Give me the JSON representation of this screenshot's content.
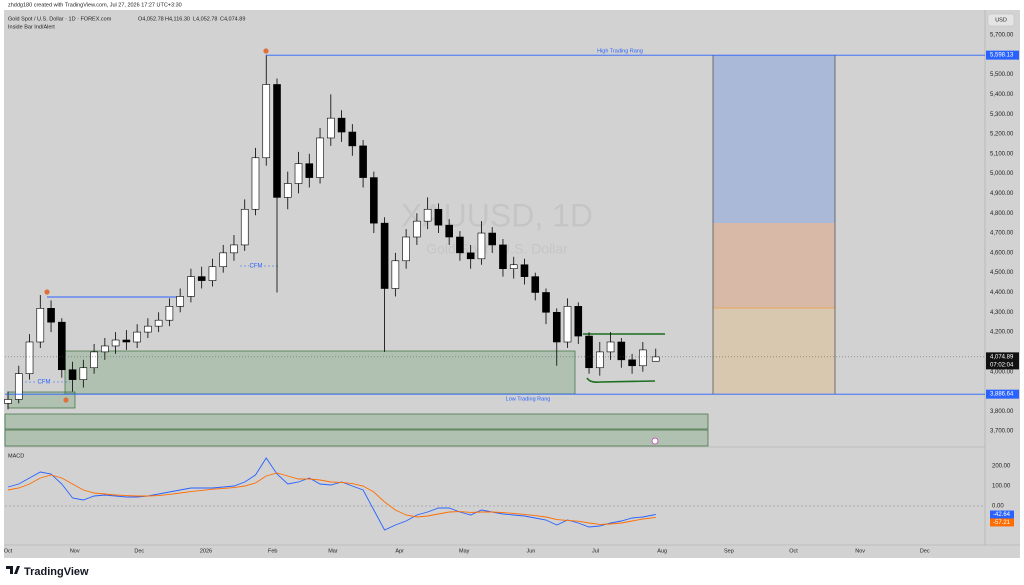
{
  "header": {
    "credit": "zhddg180 created with TradingView.com, Jul 27, 2026 17:27 UTC+3:30",
    "symbol": "Gold Spot / U.S. Dollar · 1D · FOREX.com",
    "ohlc": [
      "O4,052.78",
      "H4,116.30",
      "L4,052.78",
      "C4,074.89"
    ],
    "indicator": "Inside Bar Ind/Alert",
    "currency": "USD",
    "watermark": "XAUUSD, 1D",
    "watermark_sub": "Gold Spot / U.S. Dollar"
  },
  "chart_data": [
    {
      "type": "candlestick",
      "x": [
        0,
        5,
        10,
        15,
        20,
        25,
        30,
        35,
        40,
        45,
        50,
        55,
        60,
        65,
        70,
        75,
        80,
        85,
        90,
        95,
        100,
        105,
        110,
        115,
        120,
        125,
        130,
        135,
        140,
        145,
        150,
        155,
        160,
        165,
        170,
        175,
        180,
        185,
        190,
        195,
        200,
        205,
        210,
        215,
        220,
        225,
        230,
        235,
        240,
        245,
        250,
        255,
        260,
        265,
        270,
        275,
        280,
        285,
        290,
        295,
        301
      ],
      "open": [
        3840,
        3860,
        3990,
        4150,
        4320,
        4250,
        4010,
        3960,
        4020,
        4100,
        4130,
        4160,
        4150,
        4200,
        4230,
        4260,
        4330,
        4380,
        4480,
        4460,
        4530,
        4600,
        4640,
        4820,
        5080,
        5450,
        4880,
        4950,
        5050,
        4980,
        5180,
        5280,
        5210,
        5140,
        4980,
        4750,
        4420,
        4560,
        4680,
        4760,
        4820,
        4740,
        4680,
        4600,
        4570,
        4700,
        4640,
        4520,
        4540,
        4480,
        4400,
        4300,
        4150,
        4330,
        4180,
        4020,
        4100,
        4150,
        4060,
        4030,
        4052.78
      ],
      "high": [
        3900,
        4030,
        4190,
        4387,
        4360,
        4270,
        4050,
        4060,
        4140,
        4170,
        4200,
        4210,
        4240,
        4270,
        4300,
        4370,
        4420,
        4520,
        4530,
        4570,
        4640,
        4690,
        4870,
        5130,
        5598.13,
        5480,
        5010,
        5110,
        5100,
        5230,
        5400,
        5320,
        5250,
        5170,
        5010,
        4780,
        4600,
        4720,
        4800,
        4880,
        4850,
        4770,
        4710,
        4640,
        4760,
        4730,
        4670,
        4580,
        4570,
        4500,
        4420,
        4320,
        4370,
        4350,
        4200,
        4150,
        4200,
        4170,
        4090,
        4150,
        4116.3
      ],
      "low": [
        3810,
        3840,
        3960,
        4120,
        4200,
        3970,
        3900,
        3920,
        3990,
        4060,
        4090,
        4110,
        4120,
        4170,
        4200,
        4230,
        4300,
        4350,
        4420,
        4430,
        4500,
        4560,
        4610,
        4790,
        5040,
        4400,
        4820,
        4900,
        4930,
        4950,
        5140,
        5160,
        5090,
        4930,
        4700,
        4100,
        4380,
        4520,
        4640,
        4720,
        4700,
        4640,
        4560,
        4520,
        4540,
        4600,
        4480,
        4470,
        4440,
        4360,
        4240,
        4030,
        4120,
        4140,
        3990,
        3980,
        4060,
        4020,
        3990,
        4000,
        4052.78
      ],
      "close": [
        3860,
        3990,
        4150,
        4320,
        4250,
        4010,
        3960,
        4020,
        4100,
        4130,
        4160,
        4150,
        4200,
        4230,
        4260,
        4330,
        4380,
        4480,
        4460,
        4530,
        4600,
        4640,
        4820,
        5080,
        5450,
        4880,
        4950,
        5050,
        4980,
        5180,
        5280,
        5210,
        5140,
        4980,
        4750,
        4420,
        4560,
        4680,
        4760,
        4820,
        4740,
        4680,
        4600,
        4570,
        4700,
        4640,
        4520,
        4540,
        4480,
        4400,
        4300,
        4150,
        4330,
        4180,
        4020,
        4100,
        4150,
        4060,
        4030,
        4110,
        4074.89
      ],
      "up_color": "#ffffff",
      "down_color": "#000000",
      "xlim": [
        -1.4,
        454
      ],
      "xticks": [
        {
          "value": 0,
          "label": "Oct"
        },
        {
          "value": 31,
          "label": "Nov"
        },
        {
          "value": 61,
          "label": "Dec"
        },
        {
          "value": 92,
          "label": "2026"
        },
        {
          "value": 123,
          "label": "Feb"
        },
        {
          "value": 151,
          "label": "Mar"
        },
        {
          "value": 182,
          "label": "Apr"
        },
        {
          "value": 212,
          "label": "May"
        },
        {
          "value": 243,
          "label": "Jun"
        },
        {
          "value": 273,
          "label": "Jul"
        },
        {
          "value": 304,
          "label": "Aug"
        },
        {
          "value": 335,
          "label": "Sep"
        },
        {
          "value": 365,
          "label": "Oct"
        },
        {
          "value": 396,
          "label": "Nov"
        },
        {
          "value": 426,
          "label": "Dec"
        }
      ],
      "ylim": [
        3630,
        5826
      ],
      "yticks": [
        {
          "value": 3700,
          "label": "3,700.00"
        },
        {
          "value": 3800,
          "label": "3,800.00"
        },
        {
          "value": 4000,
          "label": "4,000.00"
        },
        {
          "value": 4200,
          "label": "4,200.00"
        },
        {
          "value": 4300,
          "label": "4,300.00"
        },
        {
          "value": 4400,
          "label": "4,400.00"
        },
        {
          "value": 4500,
          "label": "4,500.00"
        },
        {
          "value": 4600,
          "label": "4,600.00"
        },
        {
          "value": 4700,
          "label": "4,700.00"
        },
        {
          "value": 4800,
          "label": "4,800.00"
        },
        {
          "value": 4900,
          "label": "4,900.00"
        },
        {
          "value": 5000,
          "label": "5,000.00"
        },
        {
          "value": 5100,
          "label": "5,100.00"
        },
        {
          "value": 5200,
          "label": "5,200.00"
        },
        {
          "value": 5300,
          "label": "5,300.00"
        },
        {
          "value": 5400,
          "label": "5,400.00"
        },
        {
          "value": 5500,
          "label": "5,500.00"
        },
        {
          "value": 5700,
          "label": "5,700.00"
        }
      ],
      "grid": false,
      "levels": [
        {
          "name": "High Trading Rang",
          "value": 5598.13,
          "axis_label": "5,598.13",
          "color": "#2962ff"
        },
        {
          "name": "Low Trading Rang",
          "value": 3886.64,
          "axis_label": "3,886.64",
          "color": "#2962ff"
        }
      ],
      "last_price": {
        "value": 4074.89,
        "axis_label": "4,074.89",
        "countdown": "07:02:04"
      },
      "annotations": [
        "CFM",
        "CFM"
      ]
    },
    {
      "type": "line",
      "title": "MACD",
      "series": [
        {
          "color": "#2962ff",
          "last_label": "-42.64",
          "values": [
            95,
            110,
            140,
            170,
            160,
            110,
            40,
            30,
            50,
            55,
            50,
            45,
            45,
            50,
            60,
            70,
            80,
            90,
            90,
            90,
            95,
            100,
            120,
            155,
            240,
            160,
            110,
            120,
            140,
            110,
            105,
            120,
            100,
            80,
            -20,
            -120,
            -95,
            -75,
            -45,
            -30,
            -10,
            -10,
            -30,
            -45,
            -20,
            -30,
            -40,
            -45,
            -50,
            -60,
            -70,
            -95,
            -70,
            -85,
            -105,
            -100,
            -85,
            -75,
            -60,
            -55,
            -42.64
          ]
        },
        {
          "color": "#ff6d00",
          "last_label": "-57.21",
          "values": [
            80,
            90,
            110,
            140,
            155,
            140,
            110,
            80,
            65,
            60,
            55,
            52,
            50,
            50,
            52,
            58,
            65,
            72,
            78,
            84,
            88,
            92,
            100,
            115,
            150,
            165,
            150,
            135,
            135,
            130,
            120,
            118,
            112,
            100,
            70,
            20,
            -20,
            -45,
            -55,
            -50,
            -40,
            -30,
            -28,
            -32,
            -30,
            -30,
            -33,
            -37,
            -42,
            -48,
            -55,
            -68,
            -72,
            -76,
            -85,
            -92,
            -90,
            -85,
            -75,
            -65,
            -57.21
          ]
        }
      ],
      "ylim": [
        -170,
        280
      ],
      "yticks": [
        {
          "value": 0,
          "label": "0.00"
        },
        {
          "value": 100,
          "label": "100.00"
        },
        {
          "value": 200,
          "label": "200.00"
        }
      ]
    }
  ],
  "footer": {
    "brand": "TradingView"
  }
}
